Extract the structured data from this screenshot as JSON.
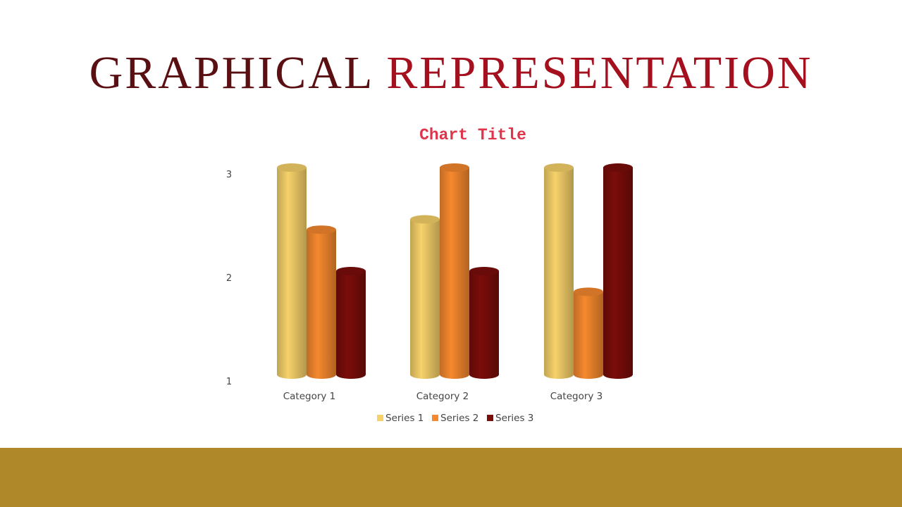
{
  "slide": {
    "title_part1": "GRAPHICAL",
    "title_part2": "REPRESENTATION",
    "footer_color": "#af8829"
  },
  "chart_data": {
    "type": "bar",
    "style": "3d-cylinder",
    "title": "Chart Title",
    "title_color": "#e0344a",
    "categories": [
      "Category 1",
      "Category 2",
      "Category 3"
    ],
    "series": [
      {
        "name": "Series 1",
        "values": [
          3.0,
          2.5,
          3.0
        ],
        "color": "#f7d26a"
      },
      {
        "name": "Series 2",
        "values": [
          2.4,
          3.0,
          1.8
        ],
        "color": "#f6892e"
      },
      {
        "name": "Series 3",
        "values": [
          2.0,
          2.0,
          3.0
        ],
        "color": "#7a0d0a"
      }
    ],
    "yticks": [
      1,
      2,
      3
    ],
    "ylim": [
      1,
      3
    ],
    "xlabel": "",
    "ylabel": "",
    "grid": false,
    "legend_position": "bottom"
  }
}
